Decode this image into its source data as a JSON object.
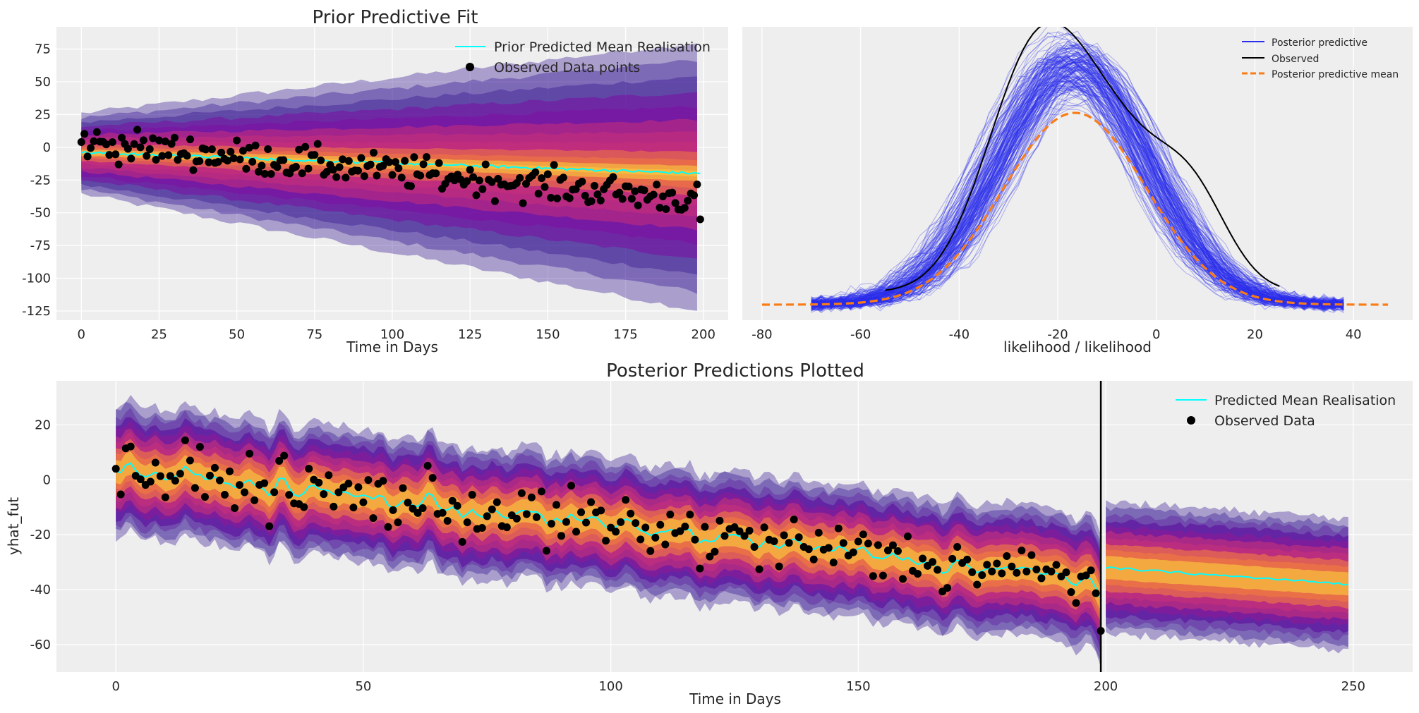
{
  "chart_data": [
    {
      "type": "line",
      "title": "Prior Predictive Fit",
      "xlabel": "Time in Days",
      "ylabel": "",
      "xlim": [
        -8,
        208
      ],
      "ylim": [
        -132,
        92
      ],
      "xticks": [
        0,
        25,
        50,
        75,
        100,
        125,
        150,
        175,
        200
      ],
      "yticks": [
        -125,
        -100,
        -75,
        -50,
        -25,
        0,
        25,
        50,
        75
      ],
      "series": [
        {
          "name": "Prior Predicted Mean Realisation",
          "kind": "line",
          "color": "#00ffff",
          "start": -4,
          "end": -20
        },
        {
          "name": "Observed Data points",
          "kind": "scatter",
          "color": "#000000",
          "trend_start": 4,
          "trend_end": -40,
          "first_point": 4,
          "last_point": -55
        }
      ],
      "band": {
        "inner_start": 9,
        "inner_end": 18,
        "outer_start": 30,
        "outer_end": 100,
        "colors": [
          "#2a0a8c",
          "#7b0fa3",
          "#c8307a",
          "#f07b3e",
          "#fbd13c"
        ]
      },
      "legend_position": "top-right"
    },
    {
      "type": "line",
      "title": "",
      "xlabel": "likelihood / likelihood",
      "ylabel": "",
      "xlim": [
        -84,
        52
      ],
      "xticks": [
        -80,
        -60,
        -40,
        -20,
        0,
        20,
        40
      ],
      "series": [
        {
          "name": "Posterior predictive",
          "kind": "density-draws",
          "color": "#2a2eec",
          "mean": -17,
          "sd": 15,
          "peak": 1.0
        },
        {
          "name": "Observed",
          "kind": "line",
          "color": "#000000",
          "x_range": [
            -55,
            25
          ]
        },
        {
          "name": "Posterior predictive mean",
          "kind": "dashed",
          "color": "#fa7c17",
          "mean": -16.5,
          "sd": 14.5,
          "peak": 0.8,
          "x_range": [
            -80,
            47
          ]
        }
      ],
      "legend_position": "top-right"
    },
    {
      "type": "line",
      "title": "Posterior Predictions Plotted",
      "xlabel": "Time in Days",
      "ylabel": "yhat_fut",
      "xlim": [
        -12,
        262
      ],
      "ylim": [
        -70,
        36
      ],
      "xticks": [
        0,
        50,
        100,
        150,
        200,
        250
      ],
      "yticks": [
        -60,
        -40,
        -20,
        0,
        20
      ],
      "vline_x": 199,
      "series": [
        {
          "name": "Predicted Mean Realisation",
          "kind": "line",
          "color": "#00ffff",
          "fit_start": 4,
          "fit_end": -37,
          "forecast_start": -32,
          "forecast_end": -38
        },
        {
          "name": "Observed Data",
          "kind": "scatter",
          "color": "#000000",
          "x_range": [
            0,
            199
          ],
          "first_point": 4,
          "last_point": -55
        }
      ],
      "legend_position": "top-right"
    }
  ]
}
